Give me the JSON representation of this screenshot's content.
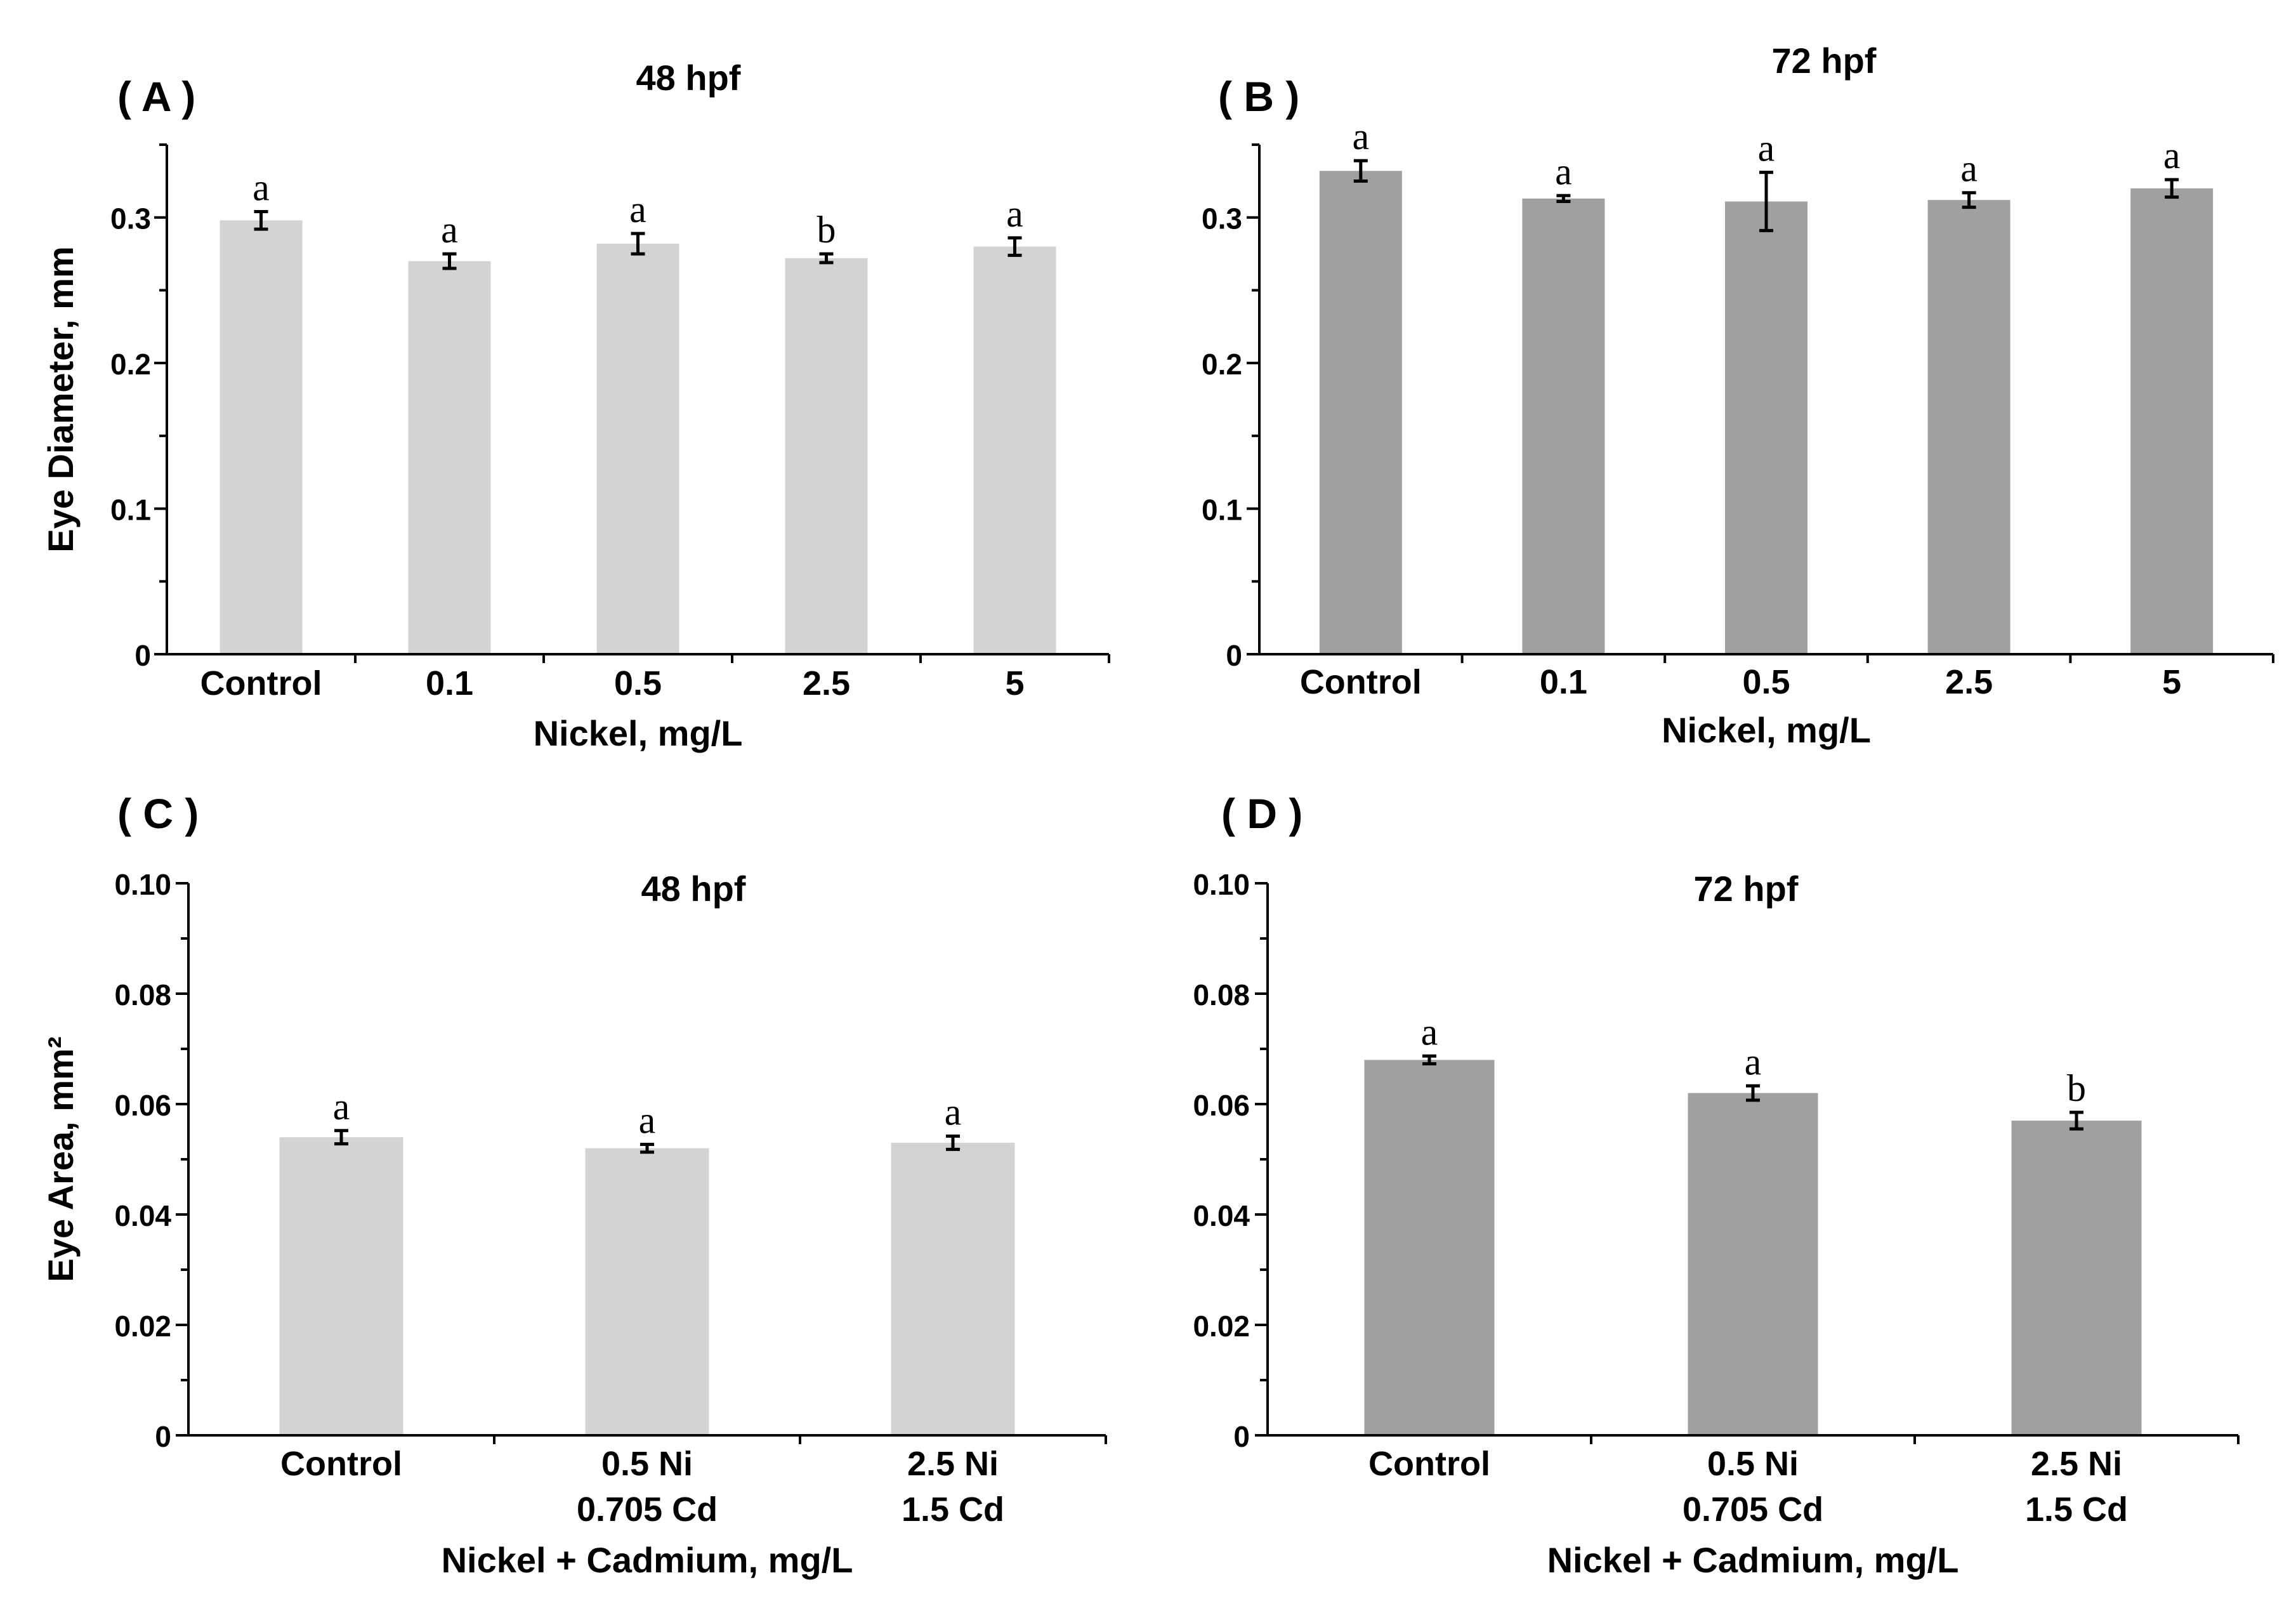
{
  "chart_data": [
    {
      "panel": "( A )",
      "type": "bar",
      "title": "48 hpf",
      "ylabel": "Eye Diameter, mm",
      "xlabel": "Nickel, mg/L",
      "categories": [
        "Control",
        "0.1",
        "0.5",
        "2.5",
        "5"
      ],
      "values": [
        0.298,
        0.27,
        0.282,
        0.272,
        0.28
      ],
      "errors": [
        0.006,
        0.005,
        0.007,
        0.003,
        0.006
      ],
      "significance": [
        "a",
        "a",
        "a",
        "b",
        "a"
      ],
      "ylim": [
        0,
        0.35
      ],
      "yticks": [
        "0",
        "0.1",
        "0.2",
        "0.3"
      ],
      "bar_color": "#d3d3d3"
    },
    {
      "panel": "( B )",
      "type": "bar",
      "title": "72 hpf",
      "ylabel": "",
      "xlabel": "Nickel, mg/L",
      "categories": [
        "Control",
        "0.1",
        "0.5",
        "2.5",
        "5"
      ],
      "values": [
        0.332,
        0.313,
        0.311,
        0.312,
        0.32
      ],
      "errors": [
        0.007,
        0.002,
        0.02,
        0.005,
        0.006
      ],
      "significance": [
        "a",
        "a",
        "a",
        "a",
        "a"
      ],
      "ylim": [
        0,
        0.35
      ],
      "yticks": [
        "0",
        "0.1",
        "0.2",
        "0.3"
      ],
      "bar_color": "#a0a0a0"
    },
    {
      "panel": "( C )",
      "type": "bar",
      "title": "48 hpf",
      "ylabel": "Eye Area, mm²",
      "xlabel": "Nickel + Cadmium, mg/L",
      "categories": [
        [
          "Control"
        ],
        [
          "0.5 Ni",
          "0.705 Cd"
        ],
        [
          "2.5 Ni",
          "1.5 Cd"
        ]
      ],
      "values": [
        0.054,
        0.052,
        0.053
      ],
      "errors": [
        0.0012,
        0.0007,
        0.0012
      ],
      "significance": [
        "a",
        "a",
        "a"
      ],
      "ylim": [
        0,
        0.1
      ],
      "yticks": [
        "0",
        "0.02",
        "0.04",
        "0.06",
        "0.08",
        "0.10"
      ],
      "bar_color": "#d3d3d3"
    },
    {
      "panel": "( D )",
      "type": "bar",
      "title": "72 hpf",
      "ylabel": "",
      "xlabel": "Nickel + Cadmium, mg/L",
      "categories": [
        [
          "Control"
        ],
        [
          "0.5 Ni",
          "0.705 Cd"
        ],
        [
          "2.5 Ni",
          "1.5 Cd"
        ]
      ],
      "values": [
        0.068,
        0.062,
        0.057
      ],
      "errors": [
        0.0007,
        0.0013,
        0.0015
      ],
      "significance": [
        "a",
        "a",
        "b"
      ],
      "ylim": [
        0,
        0.1
      ],
      "yticks": [
        "0",
        "0.02",
        "0.04",
        "0.06",
        "0.08",
        "0.10"
      ],
      "bar_color": "#a0a0a0"
    }
  ]
}
